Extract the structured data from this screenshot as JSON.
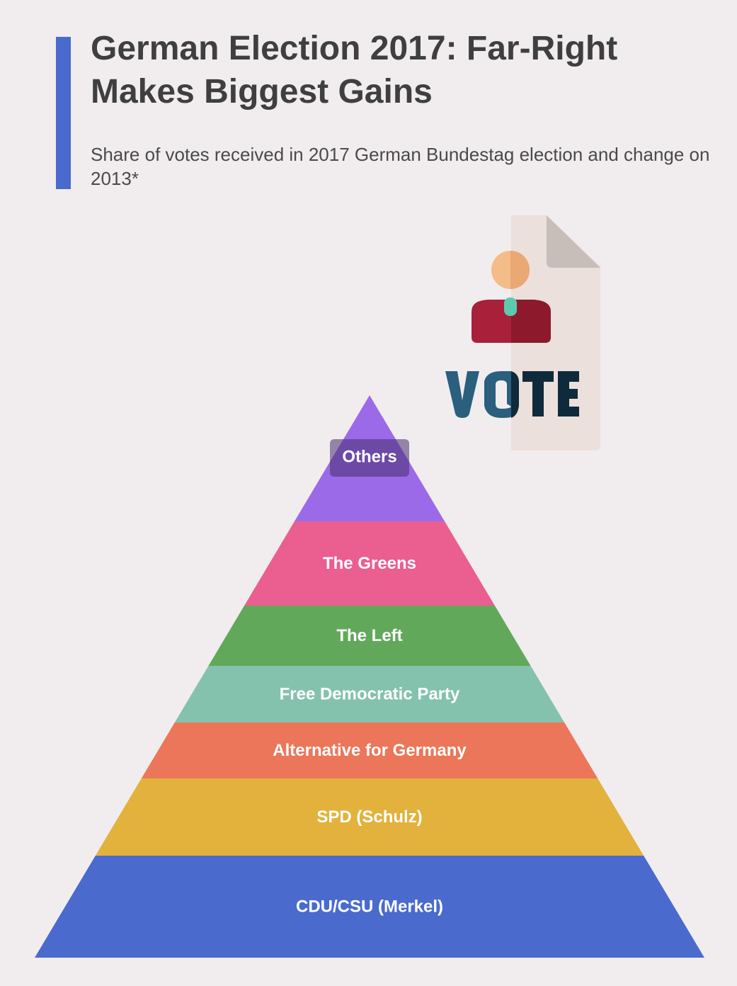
{
  "header": {
    "title": "German Election 2017: Far-Right Makes Biggest Gains",
    "subtitle": "Share of votes received in 2017 German Bundestag election and change on 2013*"
  },
  "colors": {
    "accent": "#4a6bcd",
    "background": "#f1edef",
    "title_text": "#3f3f3f",
    "label_text": "#ffffff"
  },
  "icon": {
    "name": "vote-ballot-icon",
    "text": "VOTE"
  },
  "chart_data": {
    "type": "pyramid",
    "title": "German Election 2017: Far-Right Makes Biggest Gains",
    "subtitle": "Share of votes received in 2017 German Bundestag election and change on 2013*",
    "order": "top-to-bottom",
    "segments": [
      {
        "label": "Others",
        "color": "#9b6ae8",
        "highlighted": true
      },
      {
        "label": "The Greens",
        "color": "#ea5f8f"
      },
      {
        "label": "The Left",
        "color": "#61a85b"
      },
      {
        "label": "Free Democratic Party",
        "color": "#84c2ae"
      },
      {
        "label": "Alternative for Germany",
        "color": "#ec7659"
      },
      {
        "label": "SPD (Schulz)",
        "color": "#e3b23c"
      },
      {
        "label": "CDU/CSU (Merkel)",
        "color": "#4a6bcd"
      }
    ]
  }
}
